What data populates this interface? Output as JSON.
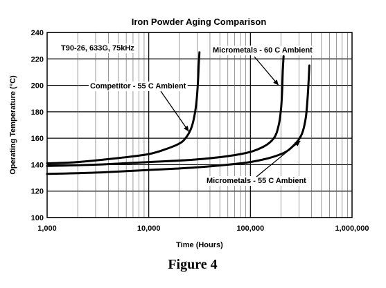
{
  "chart_data": {
    "type": "line",
    "title": "Iron Powder Aging Comparison",
    "xlabel": "Time (Hours)",
    "ylabel": "Operating Temperature (°C)",
    "xscale": "log",
    "xlim": [
      1000,
      1000000
    ],
    "ylim": [
      100,
      240
    ],
    "grid": true,
    "x_tick_labels": [
      "1,000",
      "10,000",
      "100,000",
      "1,000,000"
    ],
    "y_tick_labels": [
      "100",
      "120",
      "140",
      "160",
      "180",
      "200",
      "220",
      "240"
    ],
    "conditions_note": "T90-26,  633G,  75kHz",
    "caption": "Figure 4",
    "series": [
      {
        "annotation": "Competitor - 55 C Ambient",
        "x": [
          1000,
          2000,
          5000,
          10000,
          15000,
          20000,
          23000,
          26000,
          28000,
          29500,
          30500,
          31000,
          31500
        ],
        "y": [
          141,
          142,
          145,
          148,
          152,
          156,
          160,
          167,
          176,
          188,
          203,
          215,
          225
        ]
      },
      {
        "annotation": "Micrometals - 60 C Ambient",
        "x": [
          1000,
          3000,
          10000,
          30000,
          80000,
          130000,
          170000,
          190000,
          200000,
          205000,
          208000,
          212000
        ],
        "y": [
          139,
          140,
          142,
          144,
          148,
          153,
          160,
          170,
          182,
          195,
          210,
          222
        ]
      },
      {
        "annotation": "Micrometals - 55 C Ambient",
        "x": [
          1000,
          3000,
          10000,
          30000,
          100000,
          200000,
          270000,
          320000,
          350000,
          365000,
          375000,
          380000
        ],
        "y": [
          133,
          134,
          136,
          138,
          142,
          148,
          155,
          163,
          175,
          190,
          205,
          215
        ]
      }
    ]
  }
}
